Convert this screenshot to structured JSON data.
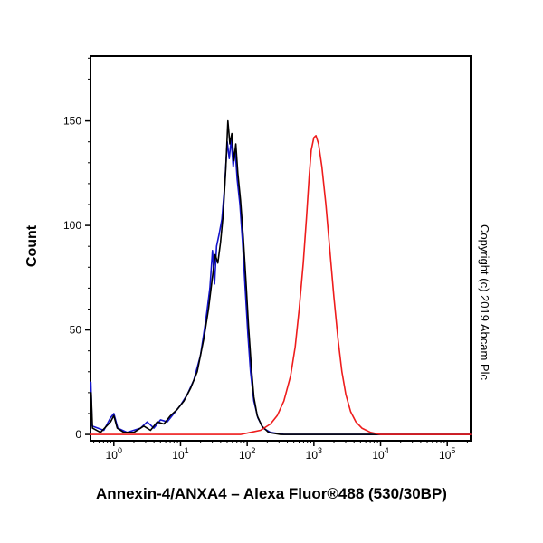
{
  "caption": "Annexin-4/ANXA4 – Alexa Fluor®488 (530/30BP)",
  "copyright": "Copyright (c) 2019 Abcam Plc",
  "chart_data": {
    "type": "line",
    "subtype": "flow-cytometry-histogram",
    "title": "",
    "xlabel": "",
    "ylabel": "Count",
    "x_scale": "log10",
    "xlim_log": [
      -0.35,
      5.35
    ],
    "ylim": [
      -3,
      181
    ],
    "x_tick_base": "10",
    "x_tick_exponents": [
      0,
      1,
      2,
      3,
      4,
      5
    ],
    "y_ticks": [
      0,
      50,
      100,
      150
    ],
    "frame_color": "#000000",
    "grid": false,
    "legend": "none",
    "series": [
      {
        "name": "blue-curve",
        "color": "#1414cc",
        "points": [
          [
            -0.35,
            0
          ],
          [
            -0.345,
            25
          ],
          [
            -0.325,
            4
          ],
          [
            -0.15,
            2
          ],
          [
            -0.05,
            8
          ],
          [
            0.0,
            10
          ],
          [
            0.06,
            3
          ],
          [
            0.2,
            1
          ],
          [
            0.4,
            3
          ],
          [
            0.5,
            6
          ],
          [
            0.6,
            3
          ],
          [
            0.7,
            7
          ],
          [
            0.8,
            6
          ],
          [
            0.9,
            10
          ],
          [
            1.0,
            14
          ],
          [
            1.1,
            19
          ],
          [
            1.2,
            26
          ],
          [
            1.3,
            38
          ],
          [
            1.38,
            55
          ],
          [
            1.44,
            70
          ],
          [
            1.48,
            88
          ],
          [
            1.51,
            72
          ],
          [
            1.54,
            90
          ],
          [
            1.58,
            96
          ],
          [
            1.62,
            103
          ],
          [
            1.66,
            118
          ],
          [
            1.7,
            140
          ],
          [
            1.73,
            132
          ],
          [
            1.76,
            141
          ],
          [
            1.79,
            128
          ],
          [
            1.82,
            136
          ],
          [
            1.85,
            122
          ],
          [
            1.89,
            110
          ],
          [
            1.93,
            92
          ],
          [
            1.97,
            70
          ],
          [
            2.01,
            48
          ],
          [
            2.05,
            30
          ],
          [
            2.1,
            16
          ],
          [
            2.16,
            8
          ],
          [
            2.24,
            3
          ],
          [
            2.35,
            1
          ],
          [
            2.55,
            0
          ],
          [
            5.35,
            0
          ]
        ]
      },
      {
        "name": "black-curve",
        "color": "#000000",
        "points": [
          [
            -0.35,
            0
          ],
          [
            -0.34,
            20
          ],
          [
            -0.32,
            3
          ],
          [
            -0.2,
            1
          ],
          [
            -0.05,
            6
          ],
          [
            0.0,
            9
          ],
          [
            0.05,
            3
          ],
          [
            0.15,
            1
          ],
          [
            0.3,
            1
          ],
          [
            0.45,
            4
          ],
          [
            0.55,
            2
          ],
          [
            0.65,
            6
          ],
          [
            0.75,
            5
          ],
          [
            0.85,
            9
          ],
          [
            0.95,
            12
          ],
          [
            1.05,
            16
          ],
          [
            1.15,
            22
          ],
          [
            1.25,
            30
          ],
          [
            1.35,
            46
          ],
          [
            1.42,
            60
          ],
          [
            1.47,
            73
          ],
          [
            1.52,
            86
          ],
          [
            1.56,
            82
          ],
          [
            1.6,
            92
          ],
          [
            1.64,
            105
          ],
          [
            1.68,
            128
          ],
          [
            1.71,
            150
          ],
          [
            1.74,
            139
          ],
          [
            1.77,
            144
          ],
          [
            1.8,
            131
          ],
          [
            1.83,
            139
          ],
          [
            1.86,
            125
          ],
          [
            1.9,
            112
          ],
          [
            1.94,
            95
          ],
          [
            1.98,
            74
          ],
          [
            2.02,
            52
          ],
          [
            2.06,
            33
          ],
          [
            2.1,
            18
          ],
          [
            2.15,
            9
          ],
          [
            2.22,
            4
          ],
          [
            2.32,
            1
          ],
          [
            2.5,
            0
          ],
          [
            5.35,
            0
          ]
        ]
      },
      {
        "name": "red-curve",
        "color": "#ee1c1c",
        "points": [
          [
            -0.35,
            0
          ],
          [
            1.9,
            0
          ],
          [
            2.05,
            1
          ],
          [
            2.2,
            2
          ],
          [
            2.35,
            5
          ],
          [
            2.45,
            9
          ],
          [
            2.55,
            16
          ],
          [
            2.65,
            28
          ],
          [
            2.72,
            42
          ],
          [
            2.78,
            60
          ],
          [
            2.84,
            82
          ],
          [
            2.89,
            104
          ],
          [
            2.93,
            124
          ],
          [
            2.96,
            136
          ],
          [
            3.0,
            142
          ],
          [
            3.03,
            143
          ],
          [
            3.07,
            139
          ],
          [
            3.12,
            128
          ],
          [
            3.18,
            110
          ],
          [
            3.24,
            88
          ],
          [
            3.3,
            66
          ],
          [
            3.36,
            46
          ],
          [
            3.42,
            30
          ],
          [
            3.48,
            19
          ],
          [
            3.55,
            11
          ],
          [
            3.63,
            6
          ],
          [
            3.72,
            3
          ],
          [
            3.85,
            1
          ],
          [
            4.0,
            0
          ],
          [
            5.35,
            0
          ]
        ]
      }
    ]
  }
}
